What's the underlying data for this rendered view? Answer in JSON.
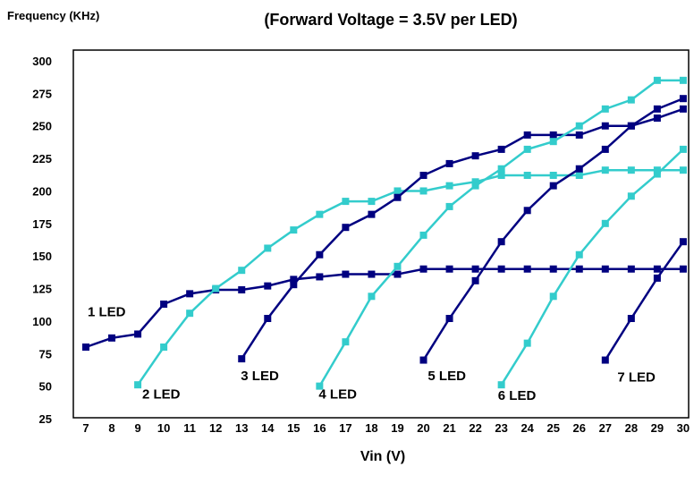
{
  "chart_data": {
    "type": "line",
    "title": "(Forward Voltage = 3.5V per LED)",
    "ylabel": "Frequency (KHz)",
    "xlabel": "Vin (V)",
    "xlim": [
      7,
      30
    ],
    "ylim": [
      25,
      300
    ],
    "x_ticks": [
      7,
      8,
      9,
      10,
      11,
      12,
      13,
      14,
      15,
      16,
      17,
      18,
      19,
      20,
      21,
      22,
      23,
      24,
      25,
      26,
      27,
      28,
      29,
      30
    ],
    "y_ticks": [
      25,
      50,
      75,
      100,
      125,
      150,
      175,
      200,
      225,
      250,
      275,
      300
    ],
    "grid": false,
    "legend": "none",
    "colors": {
      "dark": "#000080",
      "light": "#33CCCC"
    },
    "series": [
      {
        "name": "1 LED",
        "color": "dark",
        "x": [
          7,
          8,
          9,
          10,
          11,
          12,
          13,
          14,
          15,
          16,
          17,
          18,
          19,
          20,
          21,
          22,
          23,
          24,
          25,
          26,
          27,
          28,
          29,
          30
        ],
        "y": [
          80,
          87,
          90,
          113,
          121,
          124,
          124,
          127,
          132,
          134,
          136,
          136,
          136,
          140,
          140,
          140,
          140,
          140,
          140,
          140,
          140,
          140,
          140,
          140
        ]
      },
      {
        "name": "2 LED",
        "color": "light",
        "x": [
          9,
          10,
          11,
          12,
          13,
          14,
          15,
          16,
          17,
          18,
          19,
          20,
          21,
          22,
          23,
          24,
          25,
          26,
          27,
          28,
          29,
          30
        ],
        "y": [
          51,
          80,
          106,
          125,
          139,
          156,
          170,
          182,
          192,
          192,
          200,
          200,
          204,
          207,
          212,
          212,
          212,
          212,
          216,
          216,
          216,
          216
        ]
      },
      {
        "name": "3 LED",
        "color": "dark",
        "x": [
          13,
          14,
          15,
          16,
          17,
          18,
          19,
          20,
          21,
          22,
          23,
          24,
          25,
          26,
          27,
          28,
          29,
          30
        ],
        "y": [
          71,
          102,
          128,
          151,
          172,
          182,
          195,
          212,
          221,
          227,
          232,
          243,
          243,
          243,
          250,
          250,
          256,
          263
        ]
      },
      {
        "name": "4 LED",
        "color": "light",
        "x": [
          16,
          17,
          18,
          19,
          20,
          21,
          22,
          23,
          24,
          25,
          26,
          27,
          28,
          29,
          30
        ],
        "y": [
          50,
          84,
          119,
          142,
          166,
          188,
          204,
          217,
          232,
          238,
          250,
          263,
          270,
          285,
          285
        ]
      },
      {
        "name": "5 LED",
        "color": "dark",
        "x": [
          20,
          21,
          22,
          23,
          24,
          25,
          26,
          27,
          28,
          29,
          30
        ],
        "y": [
          70,
          102,
          131,
          161,
          185,
          204,
          217,
          232,
          250,
          263,
          271
        ]
      },
      {
        "name": "6 LED",
        "color": "light",
        "x": [
          23,
          24,
          25,
          26,
          27,
          28,
          29,
          30
        ],
        "y": [
          51,
          83,
          119,
          151,
          175,
          196,
          213,
          232
        ]
      },
      {
        "name": "7 LED",
        "color": "dark",
        "x": [
          27,
          28,
          29,
          30
        ],
        "y": [
          70,
          102,
          133,
          161
        ]
      }
    ],
    "annotations": [
      {
        "text": "1 LED",
        "x": 7.8,
        "y": 107
      },
      {
        "text": "2 LED",
        "x": 9.9,
        "y": 44
      },
      {
        "text": "3 LED",
        "x": 13.7,
        "y": 58
      },
      {
        "text": "4 LED",
        "x": 16.7,
        "y": 44
      },
      {
        "text": "5 LED",
        "x": 20.9,
        "y": 58
      },
      {
        "text": "6 LED",
        "x": 23.6,
        "y": 43
      },
      {
        "text": "7 LED",
        "x": 28.2,
        "y": 57
      }
    ]
  }
}
